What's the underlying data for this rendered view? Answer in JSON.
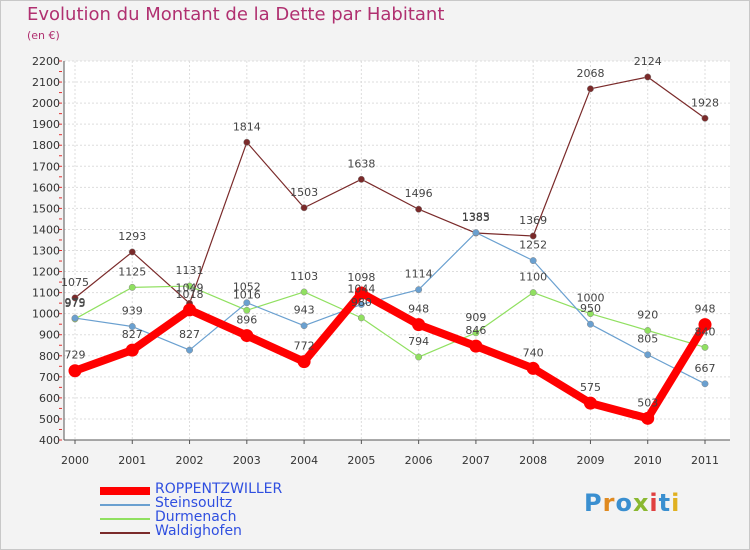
{
  "chart_data": {
    "type": "line",
    "title": "Evolution du Montant de la Dette par Habitant",
    "subtitle": "(en €)",
    "x": [
      "2000",
      "2001",
      "2002",
      "2003",
      "2004",
      "2005",
      "2006",
      "2007",
      "2008",
      "2009",
      "2010",
      "2011"
    ],
    "yticks": [
      400,
      500,
      600,
      700,
      800,
      900,
      1000,
      1100,
      1200,
      1300,
      1400,
      1500,
      1600,
      1700,
      1800,
      1900,
      2000,
      2100,
      2200
    ],
    "ylim": [
      400,
      2200
    ],
    "grid": true,
    "legend_position": "bottom-left",
    "series": [
      {
        "name": "ROPPENTZWILLER",
        "color": "#ff0000",
        "values": [
          729,
          827,
          1018,
          896,
          772,
          1098,
          948,
          846,
          740,
          575,
          503,
          948
        ]
      },
      {
        "name": "Steinsoultz",
        "color": "#6aa0d0",
        "values": [
          979,
          939,
          827,
          1052,
          943,
          1044,
          1114,
          1385,
          1252,
          950,
          805,
          667
        ]
      },
      {
        "name": "Durmenach",
        "color": "#90e060",
        "values": [
          975,
          1125,
          1131,
          1016,
          1103,
          980,
          794,
          909,
          1100,
          1000,
          920,
          840
        ]
      },
      {
        "name": "Waldighofen",
        "color": "#7a2a2a",
        "values": [
          1075,
          1293,
          1049,
          1814,
          1503,
          1638,
          1496,
          1383,
          1369,
          2068,
          2124,
          1928
        ]
      }
    ]
  },
  "logo": {
    "text": "Proxiti",
    "colors": [
      "#3a8fd0",
      "#e08a20",
      "#3a8fd0",
      "#8ab830",
      "#e04040",
      "#3a8fd0",
      "#e0b020"
    ]
  }
}
